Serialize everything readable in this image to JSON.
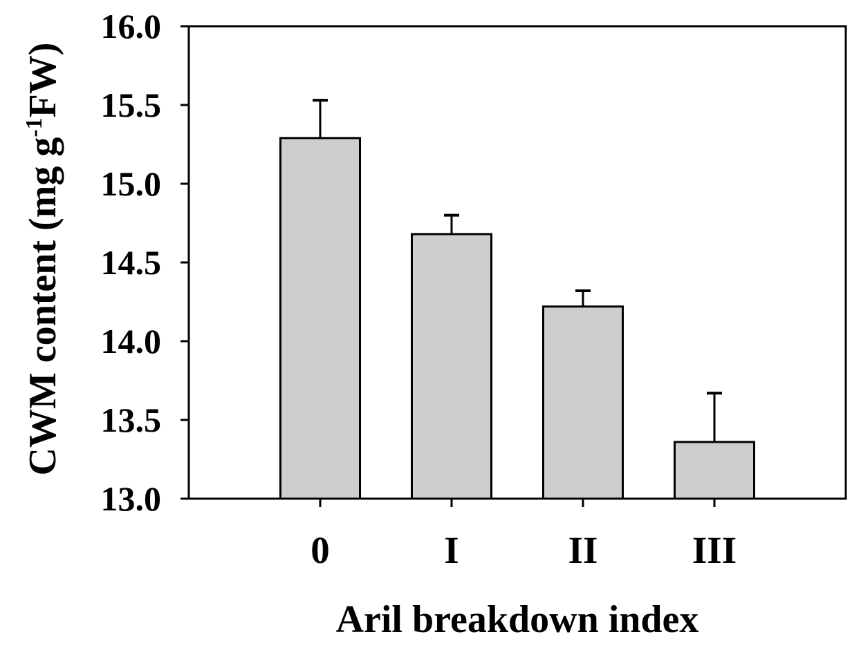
{
  "chart_data": {
    "type": "bar",
    "title": "",
    "categories": [
      "0",
      "I",
      "II",
      "III"
    ],
    "values": [
      15.29,
      14.68,
      14.22,
      13.36
    ],
    "errors_upper": [
      0.24,
      0.12,
      0.1,
      0.31
    ],
    "xlabel": "Aril breakdown index",
    "ylabel_pre": "CWM content (mg g",
    "ylabel_sup": "-1",
    "ylabel_post": "FW)",
    "ylabel_text": "CWM content (mg g-1FW)",
    "ylim": [
      13.0,
      16.0
    ],
    "ytick_step": 0.5,
    "ytick_labels": [
      "13.0",
      "13.5",
      "14.0",
      "14.5",
      "15.0",
      "15.5",
      "16.0"
    ],
    "grid": false,
    "legend_position": "none",
    "colors": {
      "bar_fill": "#cecece",
      "bar_stroke": "#000000",
      "axis": "#000000",
      "text": "#000000",
      "background": "#ffffff"
    }
  }
}
